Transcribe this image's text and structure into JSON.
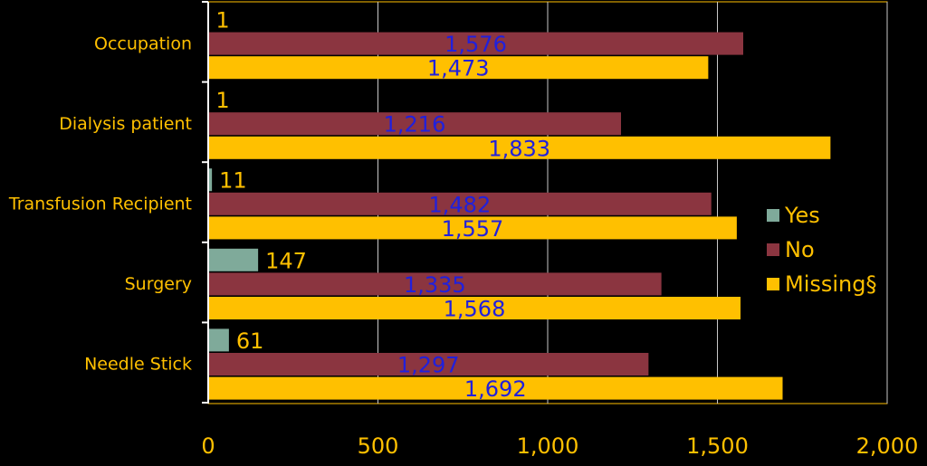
{
  "chart_data": {
    "type": "bar",
    "orientation": "horizontal",
    "categories": [
      "Occupation",
      "Dialysis patient",
      "Transfusion Recipient",
      "Surgery",
      "Needle Stick"
    ],
    "series": [
      {
        "name": "Yes",
        "values": [
          1,
          1,
          11,
          147,
          61
        ],
        "color": "#7faa9a",
        "label_color": "#ffc000"
      },
      {
        "name": "No",
        "values": [
          1576,
          1216,
          1482,
          1335,
          1297
        ],
        "color": "#8b3540",
        "label_color": "#2020dd"
      },
      {
        "name": "Missing§",
        "values": [
          1473,
          1833,
          1557,
          1568,
          1692
        ],
        "color": "#ffc000",
        "label_color": "#2020dd"
      }
    ],
    "data_labels": {
      "Yes": [
        "1",
        "1",
        "11",
        "147",
        "61"
      ],
      "No": [
        "1,576",
        "1,216",
        "1,482",
        "1,335",
        "1,297"
      ],
      "Missing§": [
        "1,473",
        "1,833",
        "1,557",
        "1,568",
        "1,692"
      ]
    },
    "x_ticks": [
      "0",
      "500",
      "1,000",
      "1,500",
      "2,000"
    ],
    "x_tick_values": [
      0,
      500,
      1000,
      1500,
      2000
    ],
    "xlim": [
      0,
      2000
    ],
    "grid": true,
    "legend_position": "right",
    "colors": {
      "background": "#000000",
      "axis": "#ffffff",
      "grid": "#c8c8c8",
      "plot_border": "#ffc000",
      "text": "#ffc000"
    }
  }
}
